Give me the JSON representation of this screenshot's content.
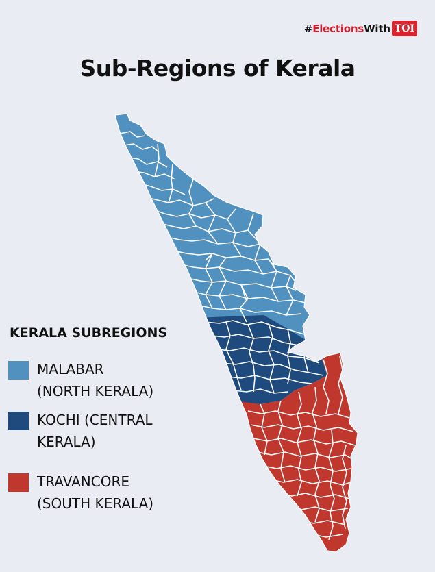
{
  "header": {
    "hashtag_prefix": "#",
    "hashtag_red": "Elections",
    "hashtag_suffix": "With",
    "logo_text": "TOI"
  },
  "title": "Sub-Regions of Kerala",
  "legend": {
    "title": "KERALA SUBREGIONS",
    "items": [
      {
        "line1": "MALABAR",
        "line2": "(NORTH KERALA)",
        "color": "#5191c0"
      },
      {
        "line1": "KOCHI (CENTRAL",
        "line2": "KERALA)",
        "color": "#1f4a7d"
      },
      {
        "line1": "TRAVANCORE",
        "line2": "(SOUTH KERALA)",
        "color": "#c0372e"
      }
    ]
  },
  "map": {
    "regions": [
      {
        "name": "Malabar",
        "color": "#5191c0"
      },
      {
        "name": "Kochi",
        "color": "#1f4a7d"
      },
      {
        "name": "Travancore",
        "color": "#c0372e"
      }
    ]
  }
}
